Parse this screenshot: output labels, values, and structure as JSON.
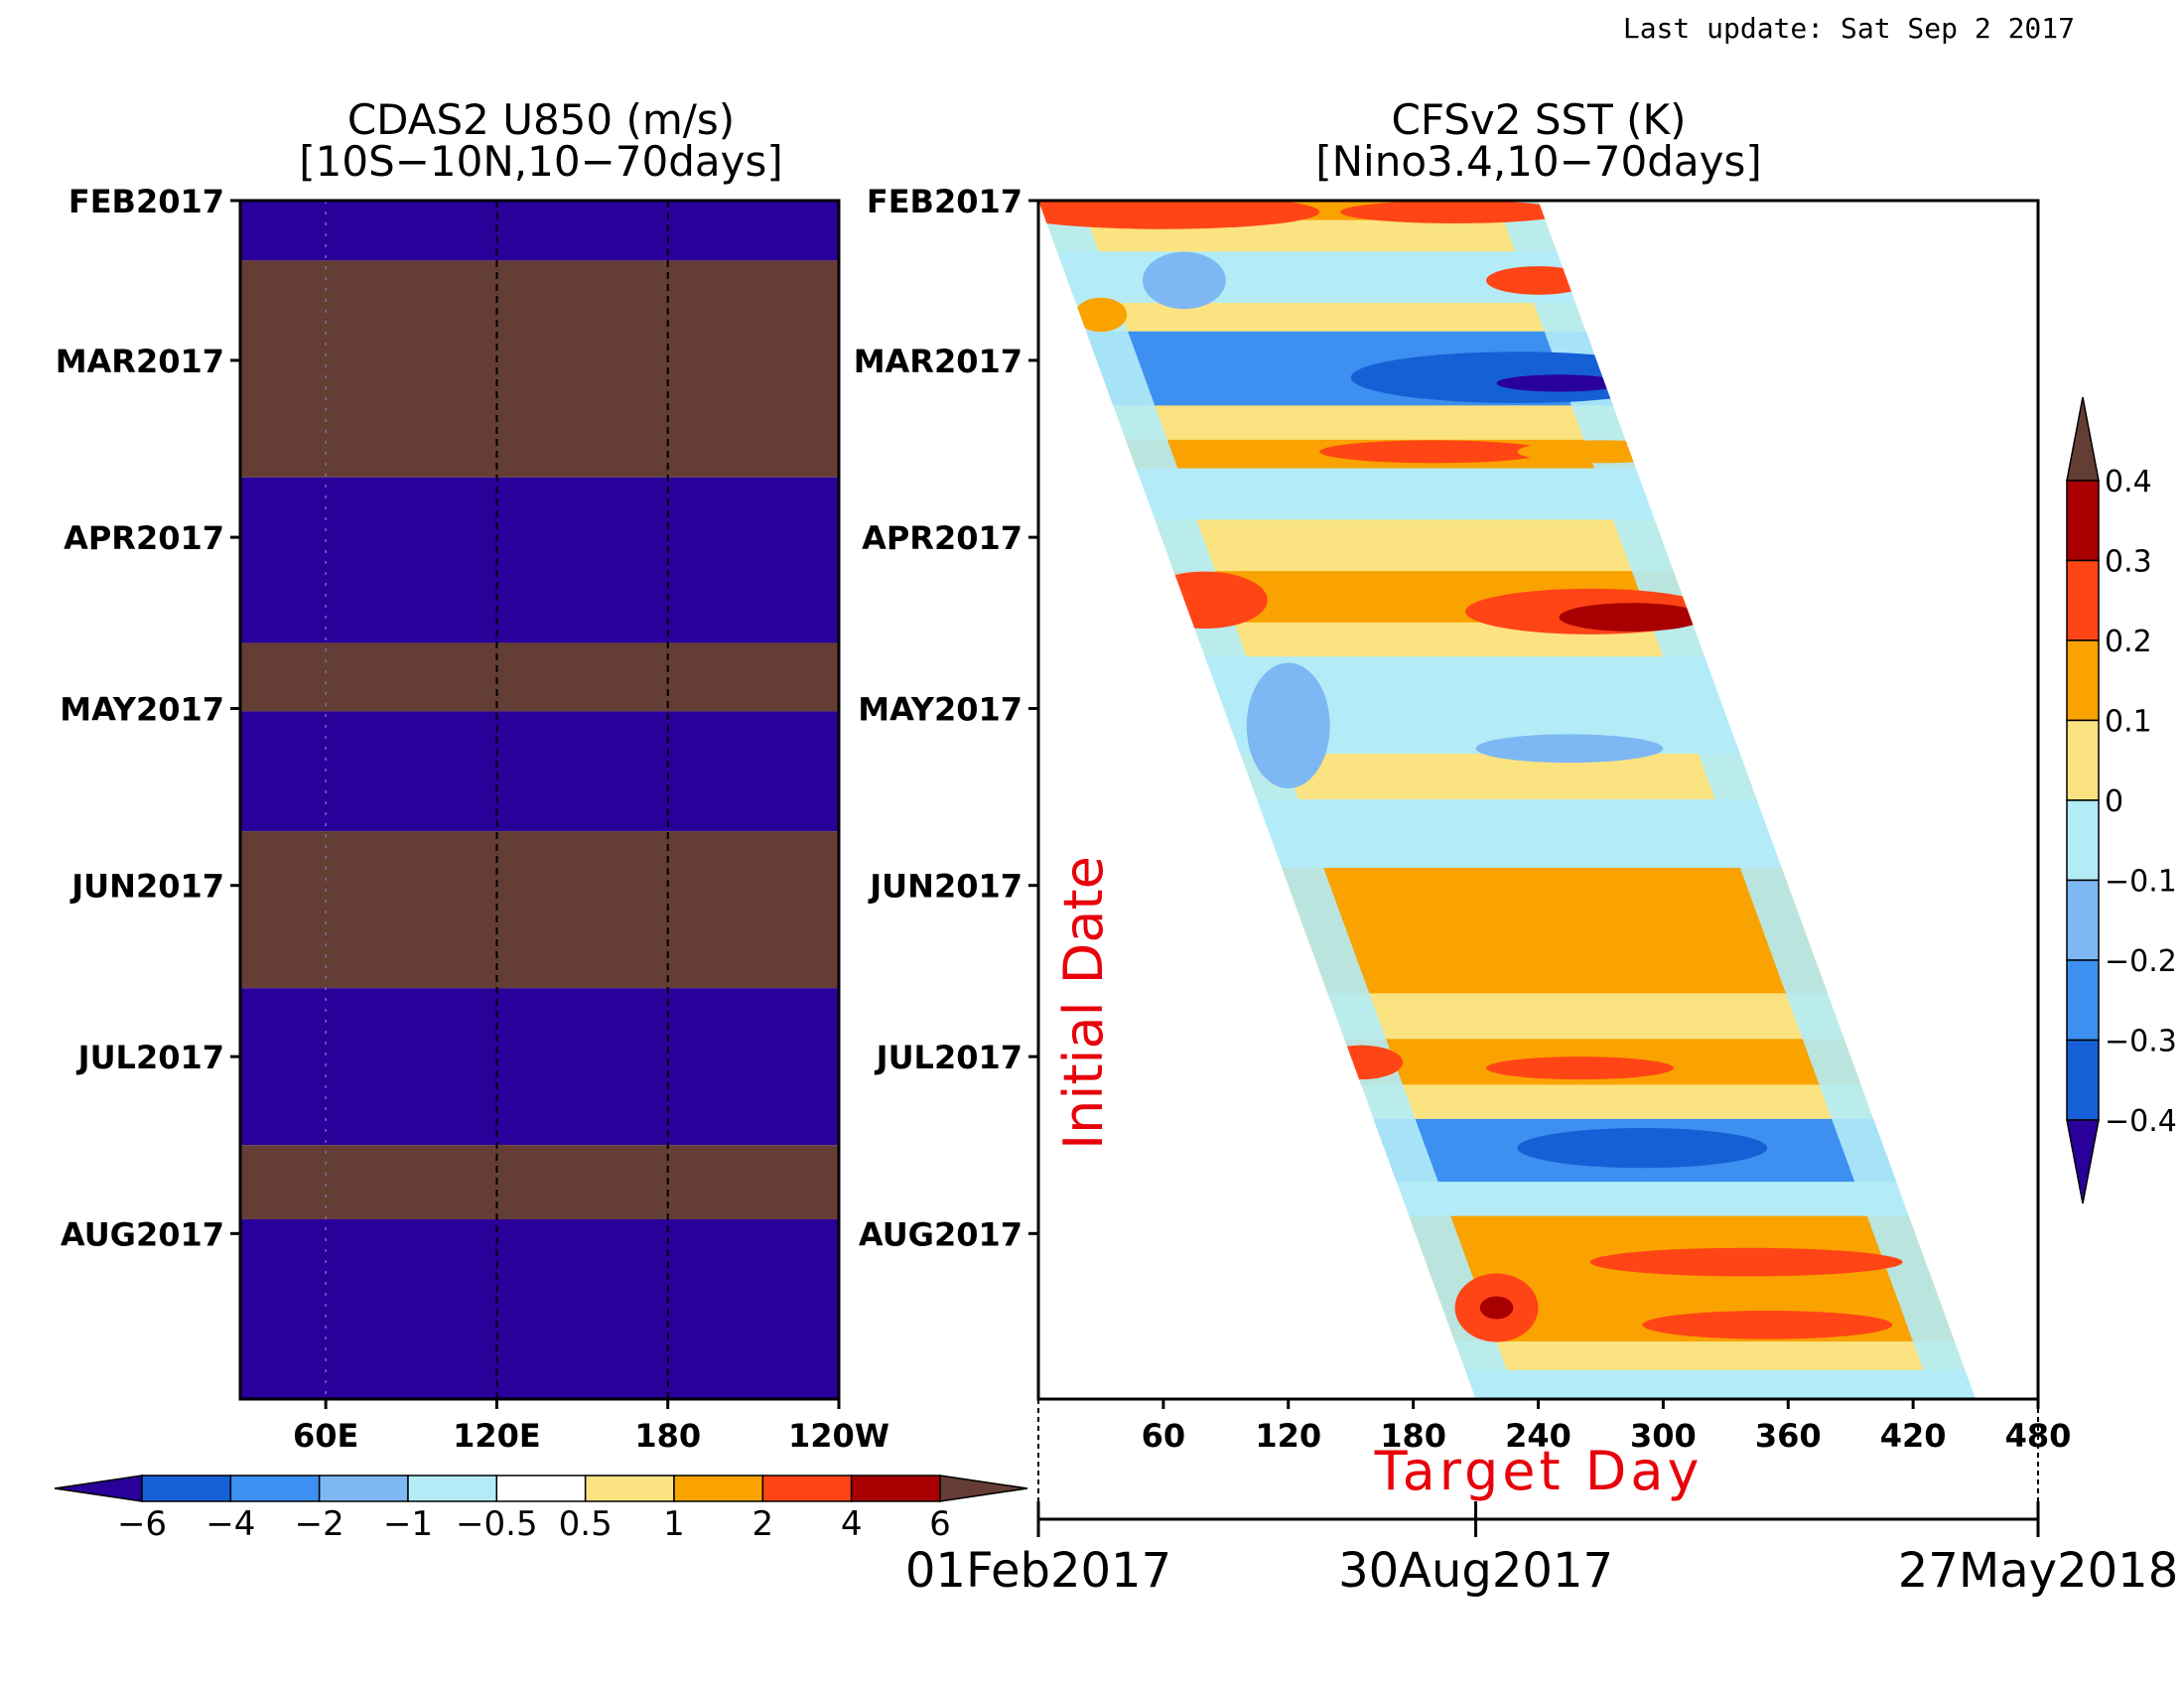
{
  "last_update": "Last update: Sat Sep 2 2017",
  "left_panel": {
    "title_line1": "CDAS2 U850 (m/s)",
    "title_line2": "[10S−10N,10−70days]"
  },
  "right_panel": {
    "title_line1": "CFSv2 SST (K)",
    "title_line2": "[Nino3.4,10−70days]",
    "ylabel": "Initial Date",
    "xlabel": "Target Day",
    "date_axis": [
      "01Feb2017",
      "30Aug2017",
      "27May2018"
    ]
  },
  "colors": {
    "n6": "#2a009a",
    "n4": "#1560d6",
    "n2": "#3d8ff0",
    "n1": "#7db8f4",
    "n05": "#b3ecf7",
    "z": "#ffffff",
    "p05": "#fbe381",
    "p1": "#f9a200",
    "p2": "#ff4516",
    "p4": "#a80000",
    "p6": "#643d34",
    "sst_n4_open": "#2a009a",
    "sst_n4": "#1560d6",
    "sst_n3": "#3d8ff0",
    "sst_n2": "#7db8f4",
    "sst_n1": "#b3ecf7",
    "sst_0": "#fbe381",
    "sst_1": "#f9a200",
    "sst_2": "#ff4516",
    "sst_3": "#a80000",
    "sst_4_open": "#643d34"
  },
  "chart_data": [
    {
      "type": "heatmap",
      "title": "CDAS2 U850 (m/s)",
      "subtitle": "[10S−10N,10−70days]",
      "x_ticks": [
        "60E",
        "120E",
        "180",
        "120W"
      ],
      "x_tick_values": [
        60,
        120,
        180,
        240
      ],
      "xlim": [
        30,
        240
      ],
      "y_ticks": [
        "FEB2017",
        "MAR2017",
        "APR2017",
        "MAY2017",
        "JUN2017",
        "JUL2017",
        "AUG2017"
      ],
      "y_tick_days": [
        0,
        28,
        59,
        89,
        120,
        150,
        181
      ],
      "ylim_days": [
        0,
        210
      ],
      "dashed_lines_x": [
        120,
        180
      ],
      "bands": [
        {
          "from_day": 0,
          "to_day": 10.5,
          "level": "n6"
        },
        {
          "from_day": 10.5,
          "to_day": 48.5,
          "level": "p6"
        },
        {
          "from_day": 48.5,
          "to_day": 77.5,
          "level": "n6"
        },
        {
          "from_day": 77.5,
          "to_day": 89.5,
          "level": "p6"
        },
        {
          "from_day": 89.5,
          "to_day": 110.5,
          "level": "n6"
        },
        {
          "from_day": 110.5,
          "to_day": 138,
          "level": "p6"
        },
        {
          "from_day": 138,
          "to_day": 165.5,
          "level": "n6"
        },
        {
          "from_day": 165.5,
          "to_day": 178.5,
          "level": "p6"
        },
        {
          "from_day": 178.5,
          "to_day": 210,
          "level": "n6"
        }
      ],
      "colorbar": {
        "labels": [
          "−6",
          "−4",
          "−2",
          "−1",
          "−0.5",
          "0.5",
          "1",
          "2",
          "4",
          "6"
        ],
        "levels": [
          "n6",
          "n4",
          "n2",
          "n1",
          "n05",
          "z",
          "p05",
          "p1",
          "p2",
          "p4",
          "p6"
        ]
      }
    },
    {
      "type": "heatmap",
      "title": "CFSv2 SST (K)",
      "subtitle": "[Nino3.4,10−70days]",
      "xlabel": "Target Day",
      "ylabel": "Initial Date",
      "x_ticks": [
        "60",
        "120",
        "180",
        "240",
        "300",
        "360",
        "420",
        "480"
      ],
      "x_tick_values": [
        60,
        120,
        180,
        240,
        300,
        360,
        420,
        480
      ],
      "xlim": [
        0,
        480
      ],
      "y_ticks": [
        "FEB2017",
        "MAR2017",
        "APR2017",
        "MAY2017",
        "JUN2017",
        "JUL2017",
        "AUG2017"
      ],
      "y_tick_days": [
        0,
        28,
        59,
        89,
        120,
        150,
        181
      ],
      "ylim_days": [
        0,
        210
      ],
      "forecast_wedge_days": [
        0,
        240
      ],
      "date_axis_labels": [
        "01Feb2017",
        "30Aug2017",
        "27May2018"
      ],
      "date_axis_days": [
        0,
        210,
        480
      ],
      "bands": [
        {
          "from_day": 0,
          "to_day": 3.5,
          "level": "sst_1"
        },
        {
          "from_day": 3.5,
          "to_day": 9,
          "level": "sst_0"
        },
        {
          "from_day": 9,
          "to_day": 18,
          "level": "sst_n1"
        },
        {
          "from_day": 18,
          "to_day": 23,
          "level": "sst_0"
        },
        {
          "from_day": 23,
          "to_day": 36,
          "level": "sst_n3"
        },
        {
          "from_day": 36,
          "to_day": 42,
          "level": "sst_0"
        },
        {
          "from_day": 42,
          "to_day": 47,
          "level": "sst_1"
        },
        {
          "from_day": 47,
          "to_day": 56,
          "level": "sst_n1"
        },
        {
          "from_day": 56,
          "to_day": 65,
          "level": "sst_0"
        },
        {
          "from_day": 65,
          "to_day": 74,
          "level": "sst_1"
        },
        {
          "from_day": 74,
          "to_day": 80,
          "level": "sst_0"
        },
        {
          "from_day": 80,
          "to_day": 97,
          "level": "sst_n1"
        },
        {
          "from_day": 97,
          "to_day": 105,
          "level": "sst_0"
        },
        {
          "from_day": 105,
          "to_day": 117,
          "level": "sst_n1"
        },
        {
          "from_day": 117,
          "to_day": 131,
          "level": "sst_1"
        },
        {
          "from_day": 131,
          "to_day": 139,
          "level": "sst_1"
        },
        {
          "from_day": 139,
          "to_day": 147,
          "level": "sst_0"
        },
        {
          "from_day": 147,
          "to_day": 155,
          "level": "sst_1"
        },
        {
          "from_day": 155,
          "to_day": 161,
          "level": "sst_0"
        },
        {
          "from_day": 161,
          "to_day": 172,
          "level": "sst_n3"
        },
        {
          "from_day": 172,
          "to_day": 178,
          "level": "sst_n1"
        },
        {
          "from_day": 178,
          "to_day": 200,
          "level": "sst_1"
        },
        {
          "from_day": 200,
          "to_day": 205,
          "level": "sst_0"
        },
        {
          "from_day": 205,
          "to_day": 210,
          "level": "sst_n1"
        }
      ],
      "blobs": [
        {
          "day": 2,
          "target": 60,
          "w": 150,
          "h": 6,
          "level": "sst_2"
        },
        {
          "day": 2,
          "target": 200,
          "w": 110,
          "h": 4,
          "level": "sst_2"
        },
        {
          "day": 14,
          "target": 240,
          "w": 50,
          "h": 5,
          "level": "sst_2"
        },
        {
          "day": 20,
          "target": 30,
          "w": 25,
          "h": 6,
          "level": "sst_1"
        },
        {
          "day": 14,
          "target": 70,
          "w": 40,
          "h": 10,
          "level": "sst_n2"
        },
        {
          "day": 31,
          "target": 230,
          "w": 160,
          "h": 9,
          "level": "sst_n4"
        },
        {
          "day": 32,
          "target": 250,
          "w": 60,
          "h": 3,
          "level": "sst_n4_open"
        },
        {
          "day": 44,
          "target": 190,
          "w": 110,
          "h": 4,
          "level": "sst_2"
        },
        {
          "day": 44,
          "target": 270,
          "w": 80,
          "h": 4,
          "level": "sst_1"
        },
        {
          "day": 70,
          "target": 80,
          "w": 60,
          "h": 10,
          "level": "sst_2"
        },
        {
          "day": 72,
          "target": 265,
          "w": 120,
          "h": 8,
          "level": "sst_2"
        },
        {
          "day": 73,
          "target": 285,
          "w": 70,
          "h": 5,
          "level": "sst_3"
        },
        {
          "day": 92,
          "target": 120,
          "w": 40,
          "h": 22,
          "level": "sst_n2"
        },
        {
          "day": 96,
          "target": 255,
          "w": 90,
          "h": 5,
          "level": "sst_n2"
        },
        {
          "day": 130,
          "target": 260,
          "w": 150,
          "h": 6,
          "level": "sst_1"
        },
        {
          "day": 151,
          "target": 155,
          "w": 40,
          "h": 6,
          "level": "sst_2"
        },
        {
          "day": 152,
          "target": 260,
          "w": 90,
          "h": 4,
          "level": "sst_2"
        },
        {
          "day": 166,
          "target": 290,
          "w": 120,
          "h": 7,
          "level": "sst_n4"
        },
        {
          "day": 186,
          "target": 340,
          "w": 150,
          "h": 5,
          "level": "sst_2"
        },
        {
          "day": 194,
          "target": 220,
          "w": 40,
          "h": 12,
          "level": "sst_2"
        },
        {
          "day": 194,
          "target": 220,
          "w": 16,
          "h": 4,
          "level": "sst_3"
        },
        {
          "day": 197,
          "target": 350,
          "w": 120,
          "h": 5,
          "level": "sst_2"
        }
      ],
      "colorbar": {
        "labels": [
          "0.4",
          "0.3",
          "0.2",
          "0.1",
          "0",
          "−0.1",
          "−0.2",
          "−0.3",
          "−0.4"
        ],
        "levels": [
          "sst_4_open",
          "sst_3",
          "sst_2",
          "sst_1",
          "sst_0",
          "sst_n1",
          "sst_n2",
          "sst_n3",
          "sst_n4",
          "sst_n4_open"
        ]
      }
    }
  ]
}
